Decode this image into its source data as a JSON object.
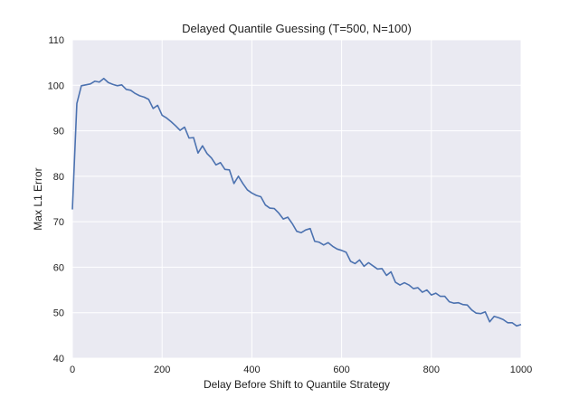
{
  "chart_data": {
    "type": "line",
    "title": "Delayed Quantile Guessing (T=500, N=100)",
    "xlabel": "Delay Before Shift to Quantile Strategy",
    "ylabel": "Max L1 Error",
    "xlim": [
      0,
      1000
    ],
    "ylim": [
      40,
      110
    ],
    "xticks": [
      0,
      200,
      400,
      600,
      800,
      1000
    ],
    "yticks": [
      40,
      50,
      60,
      70,
      80,
      90,
      100,
      110
    ],
    "grid": true,
    "colors": {
      "background": "#eaeaf2",
      "grid": "#ffffff",
      "line": "#4c72b0"
    },
    "series": [
      {
        "x": [
          0,
          10,
          20,
          30,
          40,
          50,
          60,
          70,
          80,
          90,
          100,
          110,
          120,
          130,
          140,
          150,
          160,
          170,
          180,
          190,
          200,
          210,
          220,
          230,
          240,
          250,
          260,
          270,
          280,
          290,
          300,
          310,
          320,
          330,
          340,
          350,
          360,
          370,
          380,
          390,
          400,
          410,
          420,
          430,
          440,
          450,
          460,
          470,
          480,
          490,
          500,
          510,
          520,
          530,
          540,
          550,
          560,
          570,
          580,
          590,
          600,
          610,
          620,
          630,
          640,
          650,
          660,
          670,
          680,
          690,
          700,
          710,
          720,
          730,
          740,
          750,
          760,
          770,
          780,
          790,
          800,
          810,
          820,
          830,
          840,
          850,
          860,
          870,
          880,
          890,
          900,
          910,
          920,
          930,
          940,
          950,
          960,
          970,
          980,
          990,
          1000
        ],
        "y": [
          72.7,
          96,
          99.9,
          100.1,
          100.3,
          100.9,
          100.7,
          101.5,
          100.6,
          100.2,
          99.9,
          100.1,
          99.1,
          98.9,
          98.2,
          97.7,
          97.4,
          96.9,
          94.9,
          95.6,
          93.4,
          92.8,
          92.0,
          91.1,
          90.1,
          90.8,
          88.4,
          88.5,
          85.1,
          86.7,
          85.0,
          84.0,
          82.5,
          83.0,
          81.5,
          81.4,
          78.4,
          80.0,
          78.4,
          77.0,
          76.3,
          75.8,
          75.5,
          73.7,
          73.0,
          72.9,
          71.9,
          70.6,
          71.0,
          69.6,
          67.9,
          67.6,
          68.2,
          68.5,
          65.7,
          65.5,
          64.9,
          65.4,
          64.6,
          64.0,
          63.7,
          63.3,
          61.3,
          60.8,
          61.6,
          60.2,
          61.0,
          60.3,
          59.6,
          59.7,
          58.2,
          59.0,
          56.7,
          56.1,
          56.6,
          56.1,
          55.3,
          55.5,
          54.5,
          55.0,
          53.9,
          54.3,
          53.6,
          53.6,
          52.4,
          52.1,
          52.2,
          51.8,
          51.7,
          50.6,
          49.9,
          49.8,
          50.2,
          48.0,
          49.2,
          48.9,
          48.5,
          47.8,
          47.8,
          47.1,
          47.4
        ]
      }
    ]
  }
}
